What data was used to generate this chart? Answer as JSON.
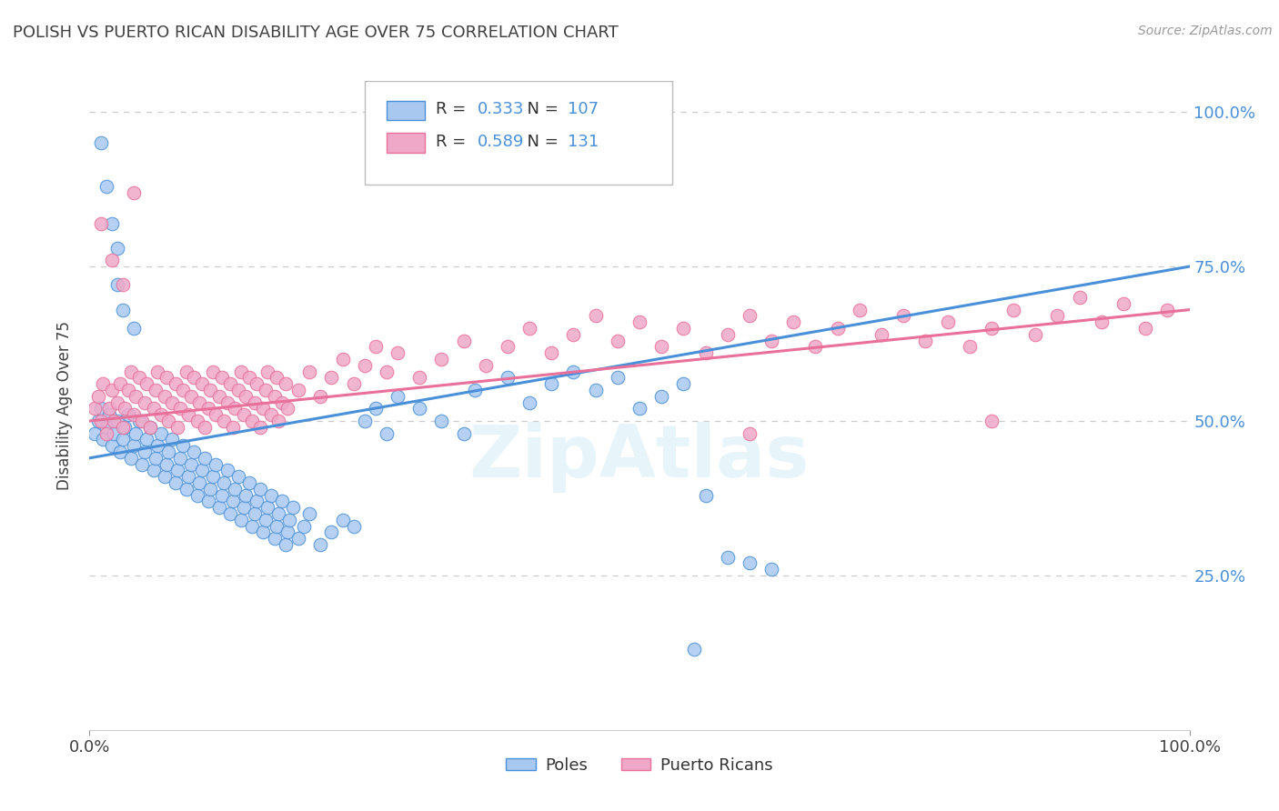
{
  "title": "POLISH VS PUERTO RICAN DISABILITY AGE OVER 75 CORRELATION CHART",
  "source": "Source: ZipAtlas.com",
  "ylabel": "Disability Age Over 75",
  "poles_color": "#a8c8f0",
  "pr_color": "#f0a8c8",
  "poles_edge_color": "#4a90d9",
  "pr_edge_color": "#e8709a",
  "poles_line_color": "#4a90d9",
  "pr_line_color": "#e8709a",
  "poles_R": "0.333",
  "poles_N": "107",
  "pr_R": "0.589",
  "pr_N": "131",
  "watermark": "ZipAtlas",
  "background_color": "#ffffff",
  "grid_color": "#cccccc",
  "title_color": "#404040",
  "ytick_color": "#4a90d9",
  "ytick_positions": [
    0.25,
    0.5,
    0.75,
    1.0
  ],
  "ytick_labels": [
    "25.0%",
    "50.0%",
    "75.0%",
    "100.0%"
  ],
  "xlim": [
    0.0,
    1.0
  ],
  "ylim": [
    0.0,
    1.05
  ],
  "poles_line_x": [
    0.0,
    1.0
  ],
  "poles_line_y": [
    0.44,
    0.75
  ],
  "pr_line_x": [
    0.0,
    1.0
  ],
  "pr_line_y": [
    0.5,
    0.68
  ],
  "poles_scatter": [
    [
      0.005,
      0.48
    ],
    [
      0.008,
      0.5
    ],
    [
      0.01,
      0.52
    ],
    [
      0.012,
      0.47
    ],
    [
      0.015,
      0.49
    ],
    [
      0.018,
      0.51
    ],
    [
      0.02,
      0.46
    ],
    [
      0.022,
      0.48
    ],
    [
      0.025,
      0.5
    ],
    [
      0.028,
      0.45
    ],
    [
      0.03,
      0.47
    ],
    [
      0.032,
      0.49
    ],
    [
      0.035,
      0.51
    ],
    [
      0.038,
      0.44
    ],
    [
      0.04,
      0.46
    ],
    [
      0.042,
      0.48
    ],
    [
      0.045,
      0.5
    ],
    [
      0.048,
      0.43
    ],
    [
      0.05,
      0.45
    ],
    [
      0.052,
      0.47
    ],
    [
      0.055,
      0.49
    ],
    [
      0.058,
      0.42
    ],
    [
      0.06,
      0.44
    ],
    [
      0.062,
      0.46
    ],
    [
      0.065,
      0.48
    ],
    [
      0.068,
      0.41
    ],
    [
      0.07,
      0.43
    ],
    [
      0.072,
      0.45
    ],
    [
      0.075,
      0.47
    ],
    [
      0.078,
      0.4
    ],
    [
      0.08,
      0.42
    ],
    [
      0.082,
      0.44
    ],
    [
      0.085,
      0.46
    ],
    [
      0.088,
      0.39
    ],
    [
      0.09,
      0.41
    ],
    [
      0.092,
      0.43
    ],
    [
      0.095,
      0.45
    ],
    [
      0.098,
      0.38
    ],
    [
      0.1,
      0.4
    ],
    [
      0.102,
      0.42
    ],
    [
      0.105,
      0.44
    ],
    [
      0.108,
      0.37
    ],
    [
      0.11,
      0.39
    ],
    [
      0.112,
      0.41
    ],
    [
      0.115,
      0.43
    ],
    [
      0.118,
      0.36
    ],
    [
      0.12,
      0.38
    ],
    [
      0.122,
      0.4
    ],
    [
      0.125,
      0.42
    ],
    [
      0.128,
      0.35
    ],
    [
      0.13,
      0.37
    ],
    [
      0.132,
      0.39
    ],
    [
      0.135,
      0.41
    ],
    [
      0.138,
      0.34
    ],
    [
      0.14,
      0.36
    ],
    [
      0.142,
      0.38
    ],
    [
      0.145,
      0.4
    ],
    [
      0.148,
      0.33
    ],
    [
      0.15,
      0.35
    ],
    [
      0.152,
      0.37
    ],
    [
      0.155,
      0.39
    ],
    [
      0.158,
      0.32
    ],
    [
      0.16,
      0.34
    ],
    [
      0.162,
      0.36
    ],
    [
      0.165,
      0.38
    ],
    [
      0.168,
      0.31
    ],
    [
      0.17,
      0.33
    ],
    [
      0.172,
      0.35
    ],
    [
      0.175,
      0.37
    ],
    [
      0.178,
      0.3
    ],
    [
      0.18,
      0.32
    ],
    [
      0.182,
      0.34
    ],
    [
      0.01,
      0.95
    ],
    [
      0.015,
      0.88
    ],
    [
      0.02,
      0.82
    ],
    [
      0.025,
      0.78
    ],
    [
      0.025,
      0.72
    ],
    [
      0.03,
      0.68
    ],
    [
      0.04,
      0.65
    ],
    [
      0.185,
      0.36
    ],
    [
      0.19,
      0.31
    ],
    [
      0.195,
      0.33
    ],
    [
      0.2,
      0.35
    ],
    [
      0.21,
      0.3
    ],
    [
      0.22,
      0.32
    ],
    [
      0.23,
      0.34
    ],
    [
      0.24,
      0.33
    ],
    [
      0.25,
      0.5
    ],
    [
      0.26,
      0.52
    ],
    [
      0.27,
      0.48
    ],
    [
      0.28,
      0.54
    ],
    [
      0.3,
      0.52
    ],
    [
      0.32,
      0.5
    ],
    [
      0.34,
      0.48
    ],
    [
      0.35,
      0.55
    ],
    [
      0.38,
      0.57
    ],
    [
      0.4,
      0.53
    ],
    [
      0.42,
      0.56
    ],
    [
      0.44,
      0.58
    ],
    [
      0.46,
      0.55
    ],
    [
      0.48,
      0.57
    ],
    [
      0.5,
      0.52
    ],
    [
      0.52,
      0.54
    ],
    [
      0.54,
      0.56
    ],
    [
      0.56,
      0.38
    ],
    [
      0.58,
      0.28
    ],
    [
      0.6,
      0.27
    ],
    [
      0.62,
      0.26
    ],
    [
      0.55,
      0.13
    ]
  ],
  "pr_scatter": [
    [
      0.005,
      0.52
    ],
    [
      0.008,
      0.54
    ],
    [
      0.01,
      0.5
    ],
    [
      0.012,
      0.56
    ],
    [
      0.015,
      0.48
    ],
    [
      0.018,
      0.52
    ],
    [
      0.02,
      0.55
    ],
    [
      0.022,
      0.5
    ],
    [
      0.025,
      0.53
    ],
    [
      0.028,
      0.56
    ],
    [
      0.03,
      0.49
    ],
    [
      0.032,
      0.52
    ],
    [
      0.035,
      0.55
    ],
    [
      0.038,
      0.58
    ],
    [
      0.04,
      0.51
    ],
    [
      0.042,
      0.54
    ],
    [
      0.045,
      0.57
    ],
    [
      0.048,
      0.5
    ],
    [
      0.05,
      0.53
    ],
    [
      0.052,
      0.56
    ],
    [
      0.055,
      0.49
    ],
    [
      0.058,
      0.52
    ],
    [
      0.06,
      0.55
    ],
    [
      0.062,
      0.58
    ],
    [
      0.065,
      0.51
    ],
    [
      0.068,
      0.54
    ],
    [
      0.07,
      0.57
    ],
    [
      0.072,
      0.5
    ],
    [
      0.075,
      0.53
    ],
    [
      0.078,
      0.56
    ],
    [
      0.08,
      0.49
    ],
    [
      0.082,
      0.52
    ],
    [
      0.085,
      0.55
    ],
    [
      0.088,
      0.58
    ],
    [
      0.09,
      0.51
    ],
    [
      0.092,
      0.54
    ],
    [
      0.095,
      0.57
    ],
    [
      0.098,
      0.5
    ],
    [
      0.1,
      0.53
    ],
    [
      0.102,
      0.56
    ],
    [
      0.105,
      0.49
    ],
    [
      0.108,
      0.52
    ],
    [
      0.11,
      0.55
    ],
    [
      0.112,
      0.58
    ],
    [
      0.115,
      0.51
    ],
    [
      0.118,
      0.54
    ],
    [
      0.12,
      0.57
    ],
    [
      0.122,
      0.5
    ],
    [
      0.125,
      0.53
    ],
    [
      0.128,
      0.56
    ],
    [
      0.13,
      0.49
    ],
    [
      0.132,
      0.52
    ],
    [
      0.135,
      0.55
    ],
    [
      0.138,
      0.58
    ],
    [
      0.14,
      0.51
    ],
    [
      0.142,
      0.54
    ],
    [
      0.145,
      0.57
    ],
    [
      0.148,
      0.5
    ],
    [
      0.15,
      0.53
    ],
    [
      0.152,
      0.56
    ],
    [
      0.155,
      0.49
    ],
    [
      0.158,
      0.52
    ],
    [
      0.16,
      0.55
    ],
    [
      0.162,
      0.58
    ],
    [
      0.165,
      0.51
    ],
    [
      0.168,
      0.54
    ],
    [
      0.17,
      0.57
    ],
    [
      0.172,
      0.5
    ],
    [
      0.175,
      0.53
    ],
    [
      0.178,
      0.56
    ],
    [
      0.01,
      0.82
    ],
    [
      0.02,
      0.76
    ],
    [
      0.03,
      0.72
    ],
    [
      0.18,
      0.52
    ],
    [
      0.19,
      0.55
    ],
    [
      0.2,
      0.58
    ],
    [
      0.21,
      0.54
    ],
    [
      0.22,
      0.57
    ],
    [
      0.23,
      0.6
    ],
    [
      0.24,
      0.56
    ],
    [
      0.25,
      0.59
    ],
    [
      0.26,
      0.62
    ],
    [
      0.27,
      0.58
    ],
    [
      0.28,
      0.61
    ],
    [
      0.3,
      0.57
    ],
    [
      0.32,
      0.6
    ],
    [
      0.34,
      0.63
    ],
    [
      0.36,
      0.59
    ],
    [
      0.38,
      0.62
    ],
    [
      0.4,
      0.65
    ],
    [
      0.42,
      0.61
    ],
    [
      0.44,
      0.64
    ],
    [
      0.46,
      0.67
    ],
    [
      0.48,
      0.63
    ],
    [
      0.5,
      0.66
    ],
    [
      0.52,
      0.62
    ],
    [
      0.54,
      0.65
    ],
    [
      0.56,
      0.61
    ],
    [
      0.58,
      0.64
    ],
    [
      0.6,
      0.67
    ],
    [
      0.62,
      0.63
    ],
    [
      0.64,
      0.66
    ],
    [
      0.66,
      0.62
    ],
    [
      0.68,
      0.65
    ],
    [
      0.7,
      0.68
    ],
    [
      0.72,
      0.64
    ],
    [
      0.74,
      0.67
    ],
    [
      0.76,
      0.63
    ],
    [
      0.78,
      0.66
    ],
    [
      0.8,
      0.62
    ],
    [
      0.82,
      0.65
    ],
    [
      0.84,
      0.68
    ],
    [
      0.86,
      0.64
    ],
    [
      0.88,
      0.67
    ],
    [
      0.9,
      0.7
    ],
    [
      0.92,
      0.66
    ],
    [
      0.94,
      0.69
    ],
    [
      0.96,
      0.65
    ],
    [
      0.98,
      0.68
    ],
    [
      0.82,
      0.5
    ],
    [
      0.6,
      0.48
    ],
    [
      0.04,
      0.87
    ]
  ]
}
